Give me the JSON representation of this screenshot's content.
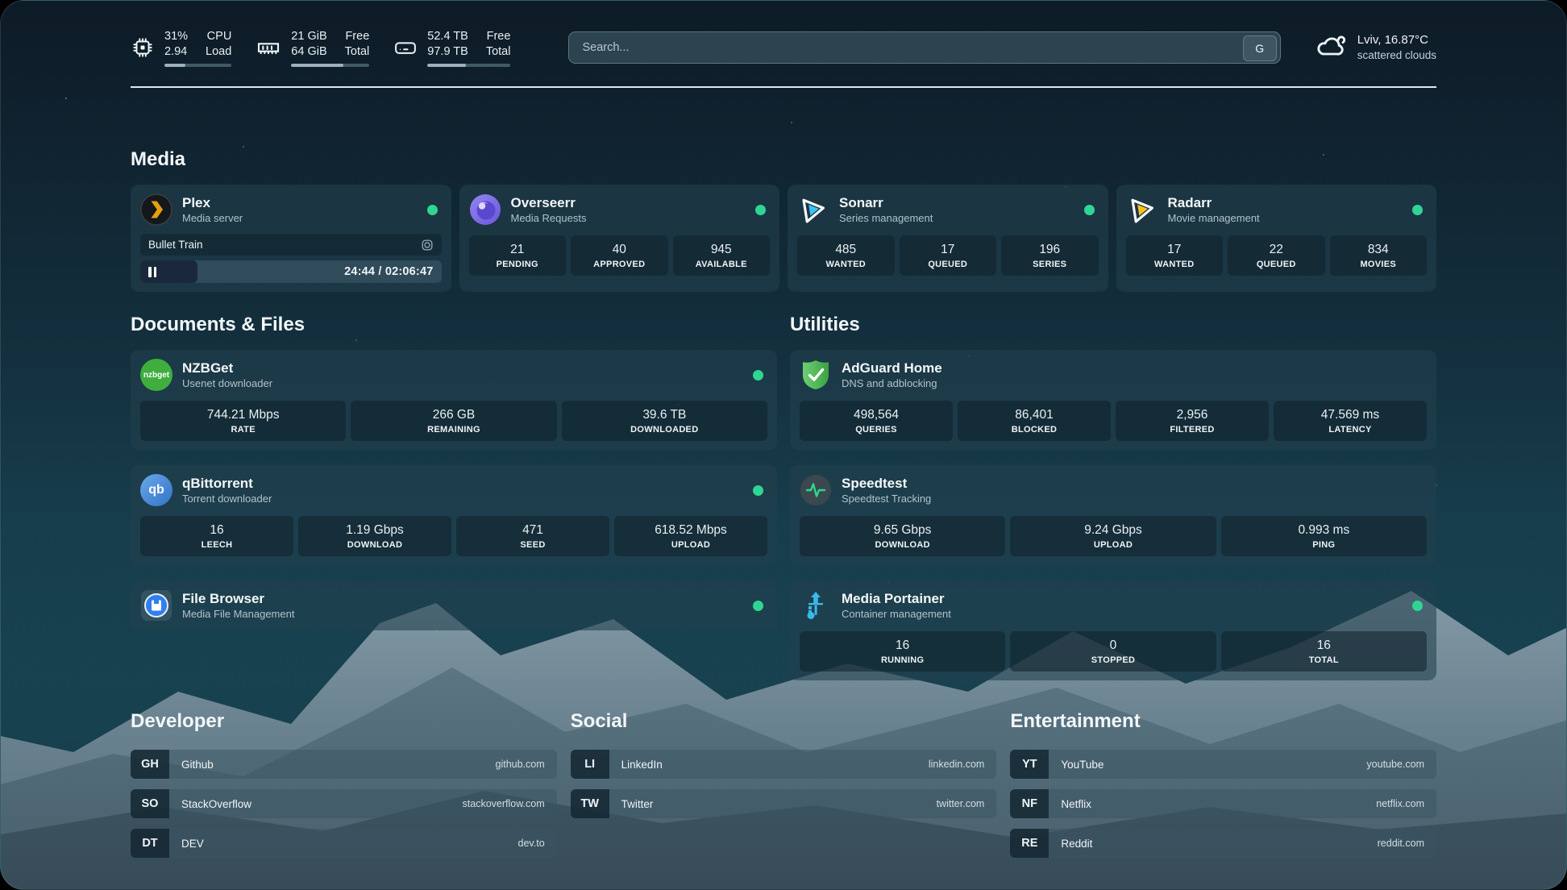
{
  "topbar": {
    "resources": [
      {
        "icon": "cpu-icon",
        "value1": "31%",
        "value2": "2.94",
        "label1": "CPU",
        "label2": "Load",
        "progress": 31
      },
      {
        "icon": "memory-icon",
        "value1": "21 GiB",
        "value2": "64 GiB",
        "label1": "Free",
        "label2": "Total",
        "progress": 67
      },
      {
        "icon": "hard-drive-icon",
        "value1": "52.4 TB",
        "value2": "97.9 TB",
        "label1": "Free",
        "label2": "Total",
        "progress": 46
      }
    ],
    "search": {
      "placeholder": "Search...",
      "button_label": "G"
    },
    "weather": {
      "icon": "scattered-clouds-icon",
      "location": "Lviv, 16.87°C",
      "condition": "scattered clouds"
    }
  },
  "sections": {
    "media_title": "Media",
    "documents_title": "Documents & Files",
    "utilities_title": "Utilities",
    "developer_title": "Developer",
    "social_title": "Social",
    "entertainment_title": "Entertainment"
  },
  "services": {
    "plex": {
      "name": "Plex",
      "desc": "Media server",
      "online": true,
      "now_playing": "Bullet Train",
      "time": "24:44 / 02:06:47",
      "progress": 19
    },
    "overseerr": {
      "name": "Overseerr",
      "desc": "Media Requests",
      "online": true,
      "stats": [
        {
          "value": "21",
          "label": "PENDING"
        },
        {
          "value": "40",
          "label": "APPROVED"
        },
        {
          "value": "945",
          "label": "AVAILABLE"
        }
      ]
    },
    "sonarr": {
      "name": "Sonarr",
      "desc": "Series management",
      "online": true,
      "stats": [
        {
          "value": "485",
          "label": "WANTED"
        },
        {
          "value": "17",
          "label": "QUEUED"
        },
        {
          "value": "196",
          "label": "SERIES"
        }
      ]
    },
    "radarr": {
      "name": "Radarr",
      "desc": "Movie management",
      "online": true,
      "stats": [
        {
          "value": "17",
          "label": "WANTED"
        },
        {
          "value": "22",
          "label": "QUEUED"
        },
        {
          "value": "834",
          "label": "MOVIES"
        }
      ]
    },
    "nzbget": {
      "name": "NZBGet",
      "desc": "Usenet downloader",
      "online": true,
      "icon_text": "nzbget",
      "stats": [
        {
          "value": "744.21 Mbps",
          "label": "RATE"
        },
        {
          "value": "266 GB",
          "label": "REMAINING"
        },
        {
          "value": "39.6 TB",
          "label": "DOWNLOADED"
        }
      ]
    },
    "qbittorrent": {
      "name": "qBittorrent",
      "desc": "Torrent downloader",
      "online": true,
      "icon_text": "qb",
      "stats": [
        {
          "value": "16",
          "label": "LEECH"
        },
        {
          "value": "1.19 Gbps",
          "label": "DOWNLOAD"
        },
        {
          "value": "471",
          "label": "SEED"
        },
        {
          "value": "618.52 Mbps",
          "label": "UPLOAD"
        }
      ]
    },
    "filebrowser": {
      "name": "File Browser",
      "desc": "Media File Management",
      "online": true
    },
    "adguard": {
      "name": "AdGuard Home",
      "desc": "DNS and adblocking",
      "online": false,
      "stats": [
        {
          "value": "498,564",
          "label": "QUERIES"
        },
        {
          "value": "86,401",
          "label": "BLOCKED"
        },
        {
          "value": "2,956",
          "label": "FILTERED"
        },
        {
          "value": "47.569 ms",
          "label": "LATENCY"
        }
      ]
    },
    "speedtest": {
      "name": "Speedtest",
      "desc": "Speedtest Tracking",
      "online": false,
      "stats": [
        {
          "value": "9.65 Gbps",
          "label": "DOWNLOAD"
        },
        {
          "value": "9.24 Gbps",
          "label": "UPLOAD"
        },
        {
          "value": "0.993 ms",
          "label": "PING"
        }
      ]
    },
    "portainer": {
      "name": "Media Portainer",
      "desc": "Container management",
      "online": true,
      "stats": [
        {
          "value": "16",
          "label": "RUNNING"
        },
        {
          "value": "0",
          "label": "STOPPED"
        },
        {
          "value": "16",
          "label": "TOTAL"
        }
      ]
    }
  },
  "bookmarks": {
    "developer": [
      {
        "abbr": "GH",
        "name": "Github",
        "domain": "github.com"
      },
      {
        "abbr": "SO",
        "name": "StackOverflow",
        "domain": "stackoverflow.com"
      },
      {
        "abbr": "DT",
        "name": "DEV",
        "domain": "dev.to"
      }
    ],
    "social": [
      {
        "abbr": "LI",
        "name": "LinkedIn",
        "domain": "linkedin.com"
      },
      {
        "abbr": "TW",
        "name": "Twitter",
        "domain": "twitter.com"
      }
    ],
    "entertainment": [
      {
        "abbr": "YT",
        "name": "YouTube",
        "domain": "youtube.com"
      },
      {
        "abbr": "NF",
        "name": "Netflix",
        "domain": "netflix.com"
      },
      {
        "abbr": "RE",
        "name": "Reddit",
        "domain": "reddit.com"
      }
    ]
  },
  "colors": {
    "status_online": "#2fd693",
    "plex_accent": "#e5a00d",
    "sonarr_accent": "#39c3f2",
    "radarr_accent": "#f7c21a",
    "adguard_accent": "#4db053",
    "portainer_accent": "#38b9ea"
  }
}
